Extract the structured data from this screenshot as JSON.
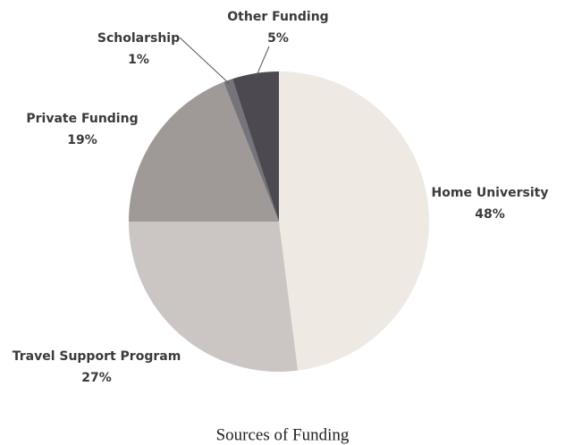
{
  "chart_data": {
    "type": "pie",
    "title": "Sources of Funding",
    "categories": [
      "Home University",
      "Travel Support Program",
      "Private Funding",
      "Scholarship",
      "Other Funding"
    ],
    "values": [
      48,
      27,
      19,
      1,
      5
    ],
    "value_labels": [
      "48%",
      "27%",
      "19%",
      "1%",
      "5%"
    ],
    "colors": [
      "#efe9e4",
      "#cbc6c3",
      "#9f9a98",
      "#77737a",
      "#4c4a50"
    ]
  }
}
